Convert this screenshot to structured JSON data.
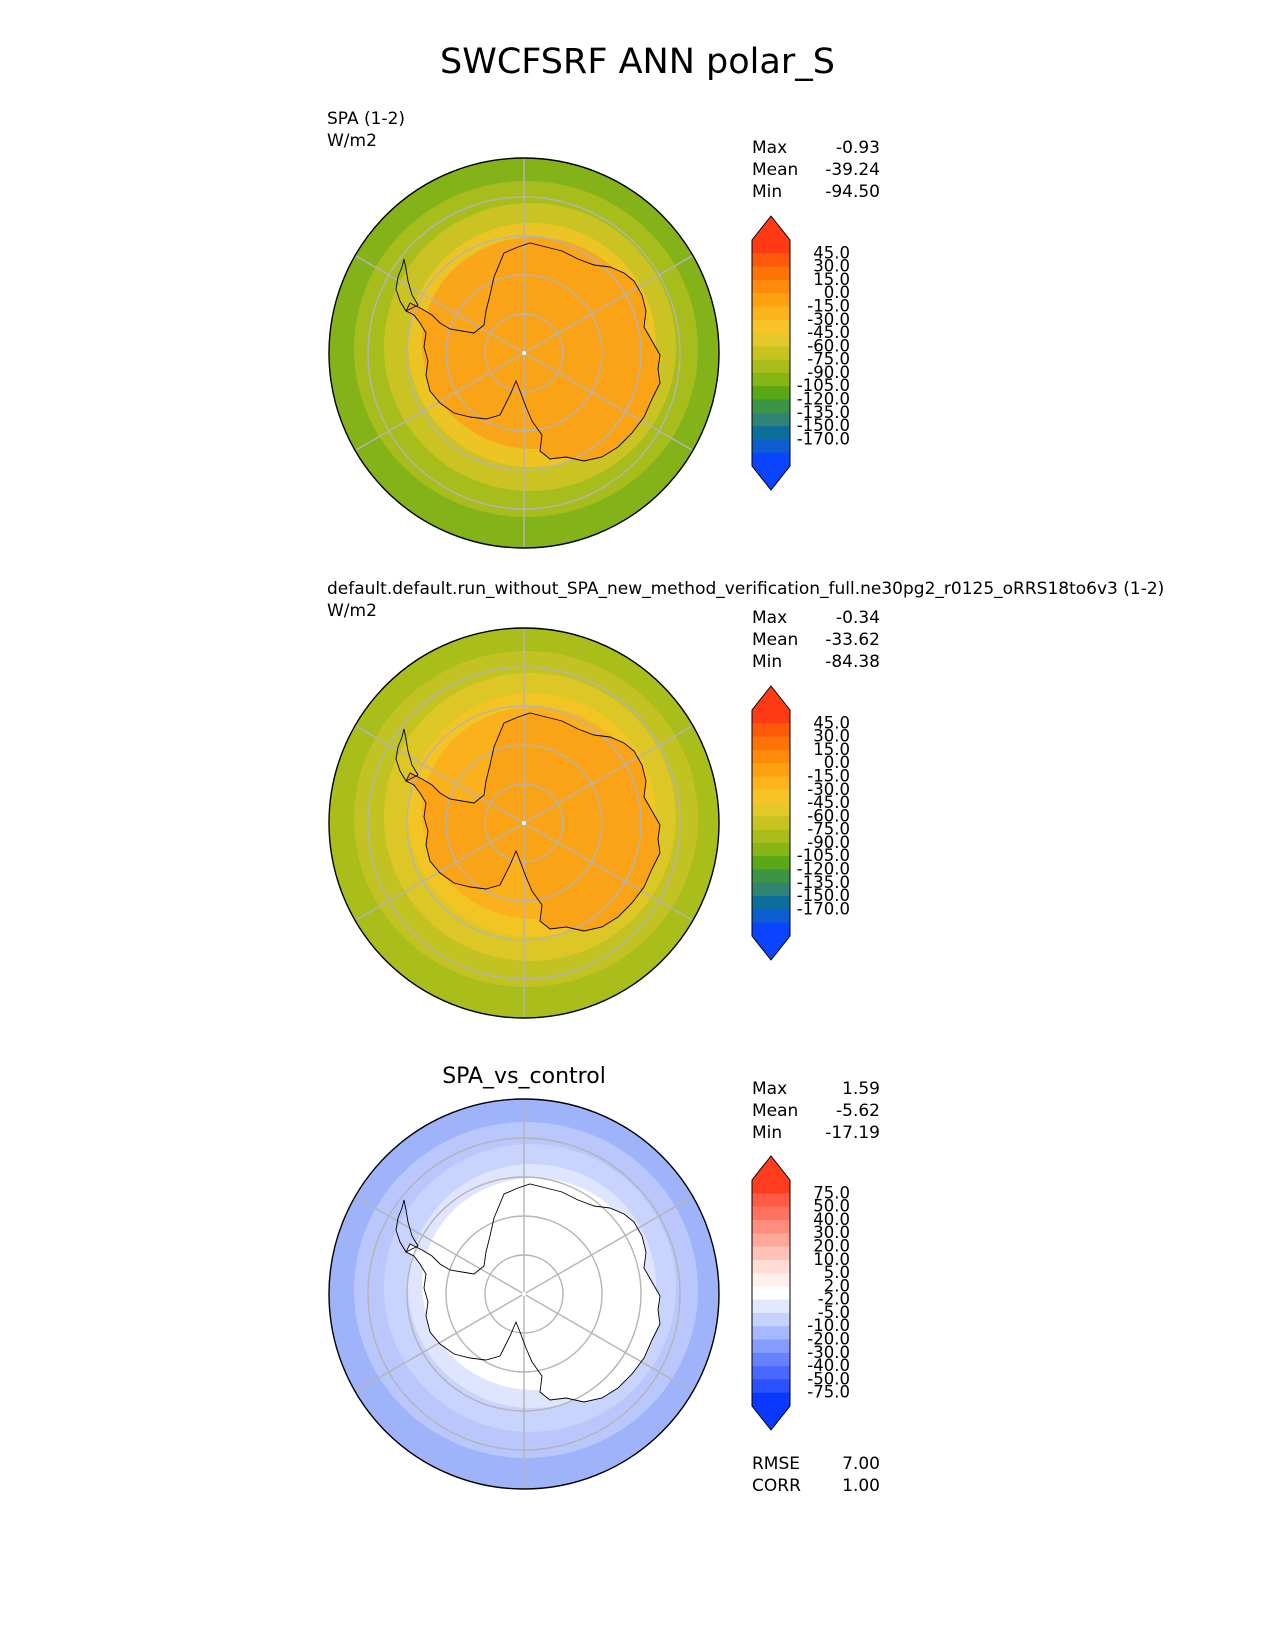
{
  "title": "SWCFSRF ANN polar_S",
  "panels": [
    {
      "name": "SPA (1-2)",
      "units": "W/m2",
      "stats": [
        {
          "label": "Max",
          "value": "-0.93"
        },
        {
          "label": "Mean",
          "value": "-39.24"
        },
        {
          "label": "Min",
          "value": "-94.50"
        }
      ],
      "colorbar": {
        "labels": [
          "45.0",
          "30.0",
          "15.0",
          "0.0",
          "-15.0",
          "-30.0",
          "-45.0",
          "-60.0",
          "-75.0",
          "-90.0",
          "-105.0",
          "-120.0",
          "-135.0",
          "-150.0",
          "-170.0"
        ],
        "colors": [
          "#ff3a14",
          "#ff5a0a",
          "#ff7208",
          "#ff8a0c",
          "#ffa010",
          "#fdb41c",
          "#f7c428",
          "#e5c82a",
          "#c9c322",
          "#a9bd1a",
          "#86b514",
          "#58a818",
          "#3d9444",
          "#2f8474",
          "#0c6e9a",
          "#0c5ed0",
          "#0a44ff"
        ],
        "over_color": "#ff3a14",
        "under_color": "#0a44ff"
      },
      "map_colors": {
        "outer": "#84b319",
        "ring2": "#a7bd1b",
        "ring3": "#cbc323",
        "ring4": "#ecc525",
        "inner": "#faa61a",
        "continent": "#fba316"
      }
    },
    {
      "name": "default.default.run_without_SPA_new_method_verification_full.ne30pg2_r0125_oRRS18to6v3 (1-2)",
      "units": "W/m2",
      "stats": [
        {
          "label": "Max",
          "value": "-0.34"
        },
        {
          "label": "Mean",
          "value": "-33.62"
        },
        {
          "label": "Min",
          "value": "-84.38"
        }
      ],
      "colorbar": {
        "labels": [
          "45.0",
          "30.0",
          "15.0",
          "0.0",
          "-15.0",
          "-30.0",
          "-45.0",
          "-60.0",
          "-75.0",
          "-90.0",
          "-105.0",
          "-120.0",
          "-135.0",
          "-150.0",
          "-170.0"
        ],
        "colors": [
          "#ff3a14",
          "#ff5a0a",
          "#ff7208",
          "#ff8a0c",
          "#ffa010",
          "#fdb41c",
          "#f7c428",
          "#e5c82a",
          "#c9c322",
          "#a9bd1a",
          "#86b514",
          "#58a818",
          "#3d9444",
          "#2f8474",
          "#0c6e9a",
          "#0c5ed0",
          "#0a44ff"
        ],
        "over_color": "#ff3a14",
        "under_color": "#0a44ff"
      },
      "map_colors": {
        "outer": "#a9bd1b",
        "ring2": "#c3c223",
        "ring3": "#dcc726",
        "ring4": "#f2c524",
        "inner": "#fbb11c",
        "continent": "#fba316"
      }
    },
    {
      "name": "SPA_vs_control",
      "units": "",
      "stats": [
        {
          "label": "Max",
          "value": "1.59"
        },
        {
          "label": "Mean",
          "value": "-5.62"
        },
        {
          "label": "Min",
          "value": "-17.19"
        }
      ],
      "extra_stats": [
        {
          "label": "RMSE",
          "value": "7.00"
        },
        {
          "label": "CORR",
          "value": "1.00"
        }
      ],
      "colorbar": {
        "labels": [
          "75.0",
          "50.0",
          "40.0",
          "30.0",
          "20.0",
          "10.0",
          "5.0",
          "2.0",
          "-2.0",
          "-5.0",
          "-10.0",
          "-20.0",
          "-30.0",
          "-40.0",
          "-50.0",
          "-75.0"
        ],
        "colors": [
          "#ff3c1e",
          "#ff5a44",
          "#ff7260",
          "#ff8c7c",
          "#ffa89a",
          "#ffc2b8",
          "#ffdcd6",
          "#fff0ee",
          "#ffffff",
          "#e2e8ff",
          "#c6d2ff",
          "#a6b8ff",
          "#869cff",
          "#6682ff",
          "#4a68ff",
          "#2a50ff",
          "#0a38ff"
        ],
        "over_color": "#ff3c1e",
        "under_color": "#0a38ff"
      },
      "map_colors": {
        "outer": "#9fb3fb",
        "ring2": "#b9c7fd",
        "ring3": "#c8d3fe",
        "ring4": "#dfe5fe",
        "inner": "#ffffff",
        "continent": "#ffffff"
      }
    }
  ]
}
